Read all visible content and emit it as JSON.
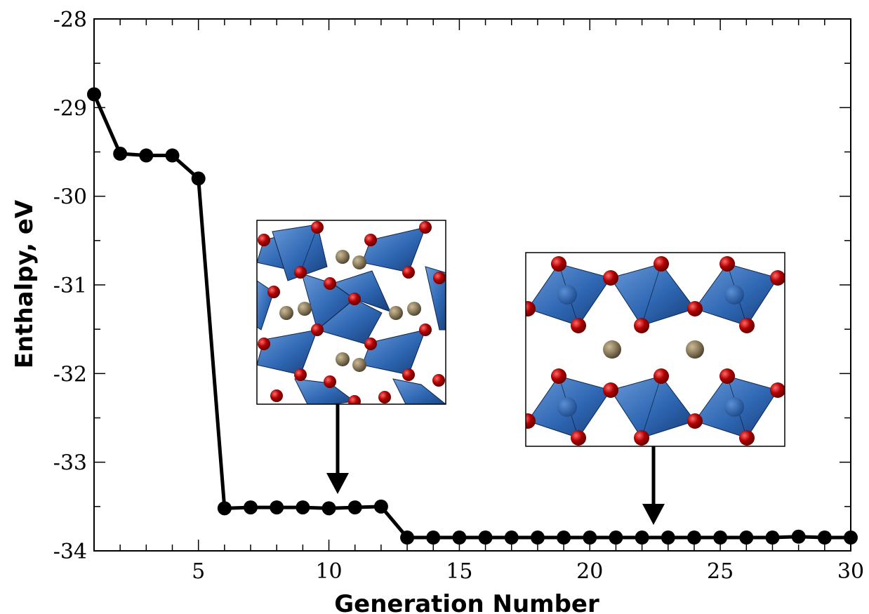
{
  "chart_data": {
    "type": "line",
    "xlabel": "Generation Number",
    "ylabel": "Enthalpy, eV",
    "xlim": [
      1,
      30
    ],
    "ylim": [
      -34,
      -28
    ],
    "xticks": [
      5,
      10,
      15,
      20,
      25,
      30
    ],
    "yticks": [
      -34,
      -33,
      -32,
      -31,
      -30,
      -29,
      -28
    ],
    "grid": false,
    "series": [
      {
        "x": [
          1,
          2,
          3,
          4,
          5,
          6,
          7,
          8,
          9,
          10,
          11,
          12,
          13,
          14,
          15,
          16,
          17,
          18,
          19,
          20,
          21,
          22,
          23,
          24,
          25,
          26,
          27,
          28,
          29,
          30
        ],
        "y": [
          -28.85,
          -29.52,
          -29.54,
          -29.54,
          -29.8,
          -33.52,
          -33.51,
          -33.51,
          -33.51,
          -33.52,
          -33.51,
          -33.5,
          -33.85,
          -33.85,
          -33.85,
          -33.85,
          -33.85,
          -33.85,
          -33.85,
          -33.85,
          -33.85,
          -33.85,
          -33.85,
          -33.85,
          -33.85,
          -33.85,
          -33.85,
          -33.84,
          -33.85,
          -33.85
        ],
        "color": "#000000"
      }
    ],
    "insets": [
      {
        "depicts": "crystal-structure-polyhedra",
        "points_to_x": 10.4,
        "colors": {
          "polyhedra": "#2f67b3",
          "oxygen": "#b00000",
          "metal": "#8a7a5a"
        }
      },
      {
        "depicts": "layered-crystal-structure",
        "points_to_x": 22.5,
        "colors": {
          "polyhedra": "#2f67b3",
          "oxygen": "#b00000",
          "metal": "#8a7a5a"
        }
      }
    ]
  }
}
